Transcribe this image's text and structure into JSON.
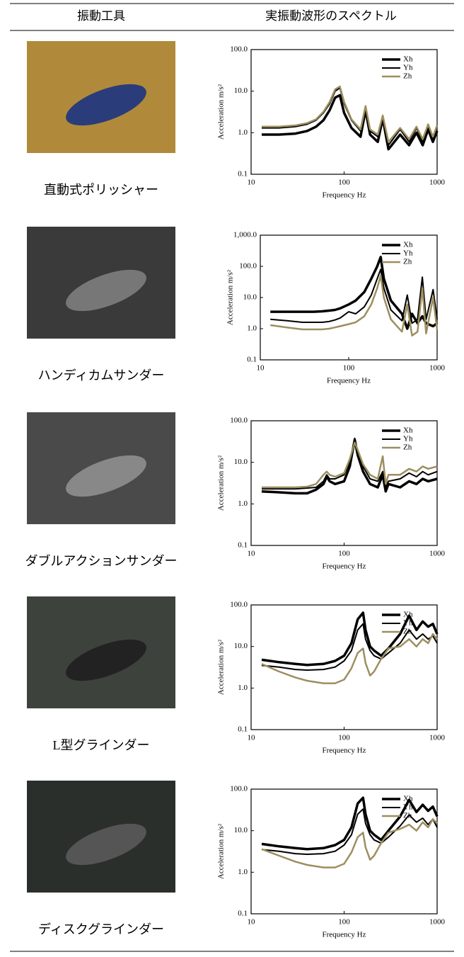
{
  "table": {
    "headers": [
      "振動工具",
      "実振動波形のスペクトル"
    ],
    "rows": [
      "直動式ポリッシャー",
      "ハンディカムサンダー",
      "ダブルアクションサンダー",
      "L型グラインダー",
      "ディスクグラインダー"
    ]
  },
  "chart_data": [
    {
      "type": "line",
      "x_label": "Frequency  Hz",
      "y_label": "Acceleration  m/s²",
      "log_x": true,
      "log_y": true,
      "x": [
        13,
        20,
        30,
        40,
        50,
        60,
        70,
        80,
        90,
        100,
        120,
        150,
        170,
        190,
        230,
        260,
        300,
        400,
        500,
        600,
        700,
        800,
        900,
        1000
      ],
      "xlim": [
        10,
        1000
      ],
      "xticks": [
        10,
        100,
        1000
      ],
      "ylim": [
        0.1,
        100
      ],
      "yticks": [
        0.1,
        {
          "value": 1,
          "label": "1.0"
        },
        {
          "value": 10,
          "label": "10.0"
        },
        {
          "value": 100,
          "label": "100.0"
        }
      ],
      "series": [
        {
          "name": "Xh",
          "color": "#000000",
          "values": [
            0.9,
            0.9,
            0.95,
            1.1,
            1.4,
            2,
            3.5,
            7,
            8,
            3,
            1.3,
            0.8,
            3.5,
            0.9,
            0.6,
            2.2,
            0.4,
            0.9,
            0.5,
            1.0,
            0.5,
            1.2,
            0.6,
            1.1
          ]
        },
        {
          "name": "Yh",
          "color": "#000000",
          "values": [
            1.3,
            1.3,
            1.4,
            1.6,
            2,
            3,
            5,
            10,
            12,
            5,
            2,
            1.1,
            4,
            1.1,
            0.8,
            2.5,
            0.5,
            1.2,
            0.6,
            1.3,
            0.6,
            1.5,
            0.7,
            1.4
          ]
        },
        {
          "name": "Zh",
          "color": "#9c8f5f",
          "values": [
            1.4,
            1.4,
            1.5,
            1.7,
            2.1,
            3.2,
            5.5,
            11,
            13,
            5.5,
            2.1,
            1.2,
            4.4,
            1.2,
            0.9,
            2.6,
            0.6,
            1.3,
            0.7,
            1.4,
            0.7,
            1.6,
            0.8,
            1.5
          ]
        }
      ]
    },
    {
      "type": "line",
      "x_label": "Frequency  Hz",
      "y_label": "Acceleration  m/s²",
      "log_x": true,
      "log_y": true,
      "x": [
        13,
        20,
        30,
        40,
        50,
        60,
        70,
        80,
        100,
        120,
        150,
        180,
        210,
        230,
        250,
        300,
        400,
        460,
        520,
        600,
        680,
        750,
        900,
        1000
      ],
      "xlim": [
        10,
        1000
      ],
      "xticks": [
        10,
        100,
        1000
      ],
      "ylim": [
        0.1,
        1000
      ],
      "yticks": [
        0.1,
        {
          "value": 1,
          "label": "1.0"
        },
        {
          "value": 10,
          "label": "10.0"
        },
        {
          "value": 100,
          "label": "100.0"
        },
        {
          "value": 1000,
          "label": "1,000.0"
        }
      ],
      "series": [
        {
          "name": "Xh",
          "color": "#000000",
          "values": [
            3.5,
            3.5,
            3.5,
            3.5,
            3.6,
            3.8,
            4,
            4.5,
            6,
            8,
            15,
            40,
            100,
            200,
            40,
            8,
            3,
            1,
            3,
            1.5,
            2.5,
            1.5,
            1.2,
            1.5
          ]
        },
        {
          "name": "Yh",
          "color": "#000000",
          "values": [
            2,
            1.8,
            1.6,
            1.6,
            1.6,
            1.7,
            1.9,
            2.2,
            3.5,
            3,
            5,
            12,
            40,
            80,
            20,
            4,
            1.8,
            12,
            1.5,
            2,
            45,
            2,
            18,
            2
          ]
        },
        {
          "name": "Zh",
          "color": "#9c8f5f",
          "values": [
            1.3,
            1.1,
            0.95,
            0.95,
            0.95,
            1,
            1.1,
            1.2,
            1.4,
            1.6,
            2.5,
            6,
            20,
            50,
            10,
            2,
            0.8,
            6,
            0.6,
            0.8,
            20,
            0.7,
            10,
            0.9
          ]
        }
      ]
    },
    {
      "type": "line",
      "x_label": "Frequency  Hz",
      "y_label": "Acceleration  m/s²",
      "log_x": true,
      "log_y": true,
      "x": [
        13,
        20,
        30,
        40,
        50,
        60,
        65,
        70,
        80,
        100,
        115,
        130,
        140,
        160,
        190,
        230,
        260,
        280,
        300,
        400,
        500,
        600,
        700,
        800,
        1000
      ],
      "xlim": [
        10,
        1000
      ],
      "xticks": [
        10,
        100,
        1000
      ],
      "ylim": [
        0.1,
        100
      ],
      "yticks": [
        0.1,
        {
          "value": 1,
          "label": "1.0"
        },
        {
          "value": 10,
          "label": "10.0"
        },
        {
          "value": 100,
          "label": "100.0"
        }
      ],
      "series": [
        {
          "name": "Xh",
          "color": "#000000",
          "values": [
            2,
            1.9,
            1.8,
            1.8,
            2.2,
            3,
            4.5,
            3.5,
            3,
            3.5,
            8,
            35,
            15,
            6,
            3,
            2.5,
            5,
            2,
            3,
            2.5,
            3.5,
            3,
            4,
            3.5,
            4
          ]
        },
        {
          "name": "Yh",
          "color": "#000000",
          "values": [
            2.3,
            2.3,
            2.3,
            2.4,
            2.5,
            3.5,
            5,
            4,
            4,
            5,
            10,
            38,
            18,
            8,
            4,
            3.5,
            6,
            2.5,
            3.5,
            4,
            5.5,
            4.5,
            6,
            5,
            6
          ]
        },
        {
          "name": "Zh",
          "color": "#9c8f5f",
          "values": [
            2.5,
            2.5,
            2.5,
            2.6,
            3,
            5,
            6,
            5,
            4.5,
            5.5,
            12,
            30,
            20,
            9,
            5,
            4,
            14,
            3,
            5,
            5,
            7,
            6,
            8,
            7,
            8
          ]
        }
      ]
    },
    {
      "type": "line",
      "x_label": "Frequency  Hz",
      "y_label": "Acceleration  m/s²",
      "log_x": true,
      "log_y": true,
      "x": [
        13,
        20,
        30,
        40,
        60,
        80,
        100,
        120,
        140,
        160,
        170,
        190,
        210,
        250,
        300,
        400,
        500,
        600,
        700,
        800,
        900,
        1000
      ],
      "xlim": [
        10,
        1000
      ],
      "xticks": [
        10,
        100,
        1000
      ],
      "ylim": [
        0.1,
        100
      ],
      "yticks": [
        0.1,
        {
          "value": 1,
          "label": "1.0"
        },
        {
          "value": 10,
          "label": "10.0"
        },
        {
          "value": 100,
          "label": "100.0"
        }
      ],
      "series": [
        {
          "name": "Xh",
          "color": "#000000",
          "values": [
            4.8,
            4.2,
            3.8,
            3.6,
            3.8,
            4.5,
            6,
            12,
            45,
            65,
            25,
            10,
            8,
            6,
            9,
            20,
            55,
            25,
            40,
            30,
            35,
            20
          ]
        },
        {
          "name": "Yh",
          "color": "#000000",
          "values": [
            3.5,
            3.2,
            2.8,
            2.7,
            2.8,
            3.2,
            4.5,
            8,
            25,
            35,
            15,
            8,
            6,
            5,
            7,
            12,
            25,
            15,
            20,
            15,
            18,
            12
          ]
        },
        {
          "name": "Zh",
          "color": "#9c8f5f",
          "values": [
            3.8,
            2.5,
            1.8,
            1.5,
            1.3,
            1.3,
            1.6,
            3,
            7,
            9,
            4,
            2,
            2.5,
            5,
            9,
            10,
            15,
            10,
            15,
            12,
            20,
            15
          ]
        }
      ]
    },
    {
      "type": "line",
      "x_label": "Frequency  Hz",
      "y_label": "Acceleration  m/s²",
      "log_x": true,
      "log_y": true,
      "x": [
        13,
        20,
        30,
        40,
        60,
        80,
        100,
        120,
        140,
        160,
        170,
        190,
        210,
        250,
        300,
        400,
        500,
        600,
        700,
        800,
        900,
        1000
      ],
      "xlim": [
        10,
        1000
      ],
      "xticks": [
        10,
        100,
        1000
      ],
      "ylim": [
        0.1,
        100
      ],
      "yticks": [
        0.1,
        {
          "value": 1,
          "label": "1.0"
        },
        {
          "value": 10,
          "label": "10.0"
        },
        {
          "value": 100,
          "label": "100.0"
        }
      ],
      "series": [
        {
          "name": "Xh",
          "color": "#000000",
          "values": [
            4.8,
            4.2,
            3.8,
            3.6,
            3.8,
            4.5,
            6,
            12,
            45,
            62,
            25,
            10,
            8,
            6,
            10,
            22,
            55,
            28,
            42,
            30,
            38,
            22
          ]
        },
        {
          "name": "Yh",
          "color": "#000000",
          "values": [
            3.5,
            3.2,
            2.8,
            2.7,
            2.8,
            3.2,
            4.5,
            8,
            25,
            33,
            15,
            8,
            6,
            5,
            7,
            13,
            24,
            16,
            20,
            14,
            19,
            12
          ]
        },
        {
          "name": "Zh",
          "color": "#9c8f5f",
          "values": [
            3.6,
            2.5,
            1.8,
            1.5,
            1.3,
            1.3,
            1.6,
            3,
            7,
            9,
            4,
            2,
            2.5,
            5,
            9,
            11,
            14,
            10,
            16,
            12,
            19,
            15
          ]
        }
      ]
    }
  ]
}
